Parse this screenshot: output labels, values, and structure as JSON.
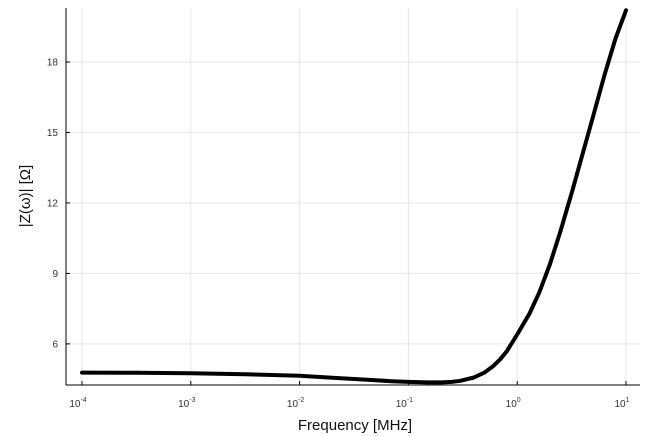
{
  "chart_data": {
    "type": "line",
    "title": "",
    "xlabel": "Frequency [MHz]",
    "ylabel": "|Z(ω)| [Ω]",
    "x_scale": "log",
    "xlim": [
      0.0001,
      10
    ],
    "ylim": [
      4.25,
      20.3
    ],
    "grid": true,
    "legend": "none",
    "line_color": "#000000",
    "x_ticks": [
      {
        "value": 0.0001,
        "base": "10",
        "exp": "-4"
      },
      {
        "value": 0.001,
        "base": "10",
        "exp": "-3"
      },
      {
        "value": 0.01,
        "base": "10",
        "exp": "-2"
      },
      {
        "value": 0.1,
        "base": "10",
        "exp": "-1"
      },
      {
        "value": 1,
        "base": "10",
        "exp": "0"
      },
      {
        "value": 10,
        "base": "10",
        "exp": "1"
      }
    ],
    "y_ticks": [
      6,
      9,
      12,
      15,
      18
    ],
    "series": [
      {
        "x": [
          0.0001,
          0.000316,
          0.001,
          0.00316,
          0.01,
          0.02,
          0.04,
          0.07,
          0.1,
          0.15,
          0.2,
          0.25,
          0.3,
          0.4,
          0.5,
          0.6,
          0.7,
          0.8,
          1.0,
          1.3,
          1.6,
          2.0,
          2.5,
          3.2,
          4.0,
          5.0,
          6.3,
          8.0,
          10.0
        ],
        "y": [
          4.78,
          4.77,
          4.75,
          4.71,
          4.64,
          4.56,
          4.48,
          4.41,
          4.38,
          4.36,
          4.36,
          4.38,
          4.43,
          4.57,
          4.78,
          5.05,
          5.35,
          5.68,
          6.4,
          7.3,
          8.2,
          9.4,
          10.8,
          12.5,
          14.1,
          15.7,
          17.4,
          19.0,
          20.2
        ]
      }
    ]
  }
}
